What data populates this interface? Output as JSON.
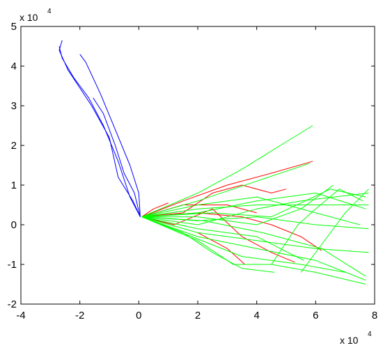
{
  "chart_data": {
    "type": "line",
    "title": "",
    "xlabel": "",
    "ylabel": "",
    "x_multiplier_label": {
      "base": "x 10",
      "exp": "4"
    },
    "y_multiplier_label": {
      "base": "x 10",
      "exp": "4"
    },
    "xlim": [
      -4,
      8
    ],
    "ylim": [
      -2,
      5
    ],
    "xticks": [
      -4,
      -2,
      0,
      2,
      4,
      6,
      8
    ],
    "yticks": [
      -2,
      -1,
      0,
      1,
      2,
      3,
      4,
      5
    ],
    "xtick_labels": [
      "-4",
      "-2",
      "0",
      "2",
      "4",
      "6",
      "8"
    ],
    "ytick_labels": [
      "-2",
      "-1",
      "0",
      "1",
      "2",
      "3",
      "4",
      "5"
    ],
    "grid": false,
    "colors": {
      "blue": "#0000ff",
      "red": "#ff0000",
      "green": "#00ff00"
    },
    "series": [
      {
        "color": "blue",
        "points": [
          [
            0.05,
            0.2
          ],
          [
            0,
            0.8
          ],
          [
            -0.3,
            1.5
          ],
          [
            -0.8,
            2.4
          ],
          [
            -1.3,
            3.3
          ],
          [
            -1.8,
            4.1
          ],
          [
            -2.0,
            4.3
          ]
        ]
      },
      {
        "color": "blue",
        "points": [
          [
            0.05,
            0.2
          ],
          [
            -0.15,
            0.8
          ],
          [
            -0.5,
            1.3
          ],
          [
            -0.8,
            2.0
          ],
          [
            -1.2,
            2.8
          ],
          [
            -1.55,
            3.2
          ]
        ]
      },
      {
        "color": "blue",
        "points": [
          [
            0.05,
            0.2
          ],
          [
            -0.2,
            0.6
          ],
          [
            -0.7,
            1.2
          ],
          [
            -1.0,
            2.2
          ],
          [
            -1.6,
            3.0
          ],
          [
            -2.4,
            3.9
          ],
          [
            -2.7,
            4.4
          ],
          [
            -2.6,
            4.65
          ]
        ]
      },
      {
        "color": "blue",
        "points": [
          [
            0.05,
            0.2
          ],
          [
            -0.3,
            0.7
          ],
          [
            -0.7,
            1.6
          ],
          [
            -1.2,
            2.5
          ],
          [
            -1.7,
            3.2
          ],
          [
            -2.2,
            3.7
          ],
          [
            -2.6,
            4.2
          ],
          [
            -2.7,
            4.5
          ]
        ]
      },
      {
        "color": "red",
        "points": [
          [
            0.1,
            0.2
          ],
          [
            0.5,
            0.4
          ],
          [
            1.0,
            0.55
          ]
        ]
      },
      {
        "color": "red",
        "points": [
          [
            0.1,
            0.2
          ],
          [
            1.5,
            0.3
          ],
          [
            2.5,
            0.8
          ],
          [
            3.5,
            1.0
          ],
          [
            4.5,
            0.8
          ],
          [
            5.0,
            0.9
          ]
        ]
      },
      {
        "color": "red",
        "points": [
          [
            0.1,
            0.2
          ],
          [
            1.5,
            0.5
          ],
          [
            3.0,
            0.5
          ],
          [
            4.0,
            0.3
          ]
        ]
      },
      {
        "color": "red",
        "points": [
          [
            0.1,
            0.2
          ],
          [
            2.0,
            0.3
          ],
          [
            3.5,
            0.2
          ],
          [
            4.5,
            0.0
          ],
          [
            5.5,
            -0.3
          ],
          [
            6.2,
            -0.65
          ]
        ]
      },
      {
        "color": "red",
        "points": [
          [
            0.1,
            0.2
          ],
          [
            1.5,
            0.6
          ],
          [
            3.0,
            1.0
          ],
          [
            4.5,
            1.3
          ],
          [
            5.9,
            1.6
          ]
        ]
      },
      {
        "color": "red",
        "points": [
          [
            0.1,
            0.2
          ],
          [
            1.2,
            0.0
          ],
          [
            2.5,
            0.4
          ],
          [
            3.5,
            -0.3
          ],
          [
            4.5,
            -0.7
          ],
          [
            5.3,
            -0.95
          ]
        ]
      },
      {
        "color": "red",
        "points": [
          [
            2.0,
            -0.2
          ],
          [
            3.0,
            -0.6
          ],
          [
            3.6,
            -1.0
          ]
        ]
      },
      {
        "color": "green",
        "points": [
          [
            0.1,
            0.2
          ],
          [
            2.0,
            0.8
          ],
          [
            3.5,
            1.4
          ],
          [
            4.8,
            2.0
          ],
          [
            5.9,
            2.5
          ]
        ]
      },
      {
        "color": "green",
        "points": [
          [
            0.1,
            0.2
          ],
          [
            2.0,
            0.6
          ],
          [
            4.0,
            1.1
          ],
          [
            5.8,
            1.55
          ]
        ]
      },
      {
        "color": "green",
        "points": [
          [
            0.1,
            0.2
          ],
          [
            2.0,
            0.4
          ],
          [
            4.0,
            0.5
          ],
          [
            6.0,
            0.5
          ],
          [
            7.8,
            0.5
          ]
        ]
      },
      {
        "color": "green",
        "points": [
          [
            0.1,
            0.2
          ],
          [
            2.0,
            0.1
          ],
          [
            4.0,
            0.2
          ],
          [
            6.0,
            0.0
          ],
          [
            7.8,
            -0.1
          ]
        ]
      },
      {
        "color": "green",
        "points": [
          [
            0.1,
            0.2
          ],
          [
            2.0,
            -0.3
          ],
          [
            4.0,
            -0.6
          ],
          [
            6.0,
            -0.9
          ],
          [
            7.7,
            -1.4
          ]
        ]
      },
      {
        "color": "green",
        "points": [
          [
            0.1,
            0.2
          ],
          [
            2.0,
            -0.4
          ],
          [
            3.2,
            -1.0
          ],
          [
            4.5,
            -1.0
          ],
          [
            6.0,
            -1.2
          ],
          [
            7.7,
            -1.5
          ]
        ]
      },
      {
        "color": "green",
        "points": [
          [
            0.1,
            0.2
          ],
          [
            2.0,
            -0.2
          ],
          [
            4.0,
            -0.4
          ],
          [
            6.0,
            -0.6
          ],
          [
            7.8,
            -0.7
          ]
        ]
      },
      {
        "color": "green",
        "points": [
          [
            0.1,
            0.2
          ],
          [
            2.0,
            0.0
          ],
          [
            4.0,
            0.4
          ],
          [
            5.5,
            0.6
          ],
          [
            7.8,
            0.8
          ]
        ]
      },
      {
        "color": "green",
        "points": [
          [
            0.1,
            0.2
          ],
          [
            2.0,
            0.2
          ],
          [
            4.0,
            0.0
          ],
          [
            5.5,
            0.4
          ],
          [
            6.6,
            1.0
          ]
        ]
      },
      {
        "color": "green",
        "points": [
          [
            0.1,
            0.2
          ],
          [
            2.0,
            0.5
          ],
          [
            4.0,
            0.7
          ],
          [
            6.0,
            0.3
          ],
          [
            7.5,
            0.0
          ]
        ]
      },
      {
        "color": "green",
        "points": [
          [
            0.1,
            0.2
          ],
          [
            2.0,
            -0.1
          ],
          [
            4.0,
            -0.3
          ],
          [
            5.6,
            -0.9
          ]
        ]
      },
      {
        "color": "green",
        "points": [
          [
            0.1,
            0.2
          ],
          [
            1.5,
            -0.2
          ],
          [
            2.5,
            -0.7
          ],
          [
            3.5,
            -1.1
          ],
          [
            4.6,
            -1.2
          ]
        ]
      },
      {
        "color": "green",
        "points": [
          [
            0.1,
            0.2
          ],
          [
            2.5,
            0.3
          ],
          [
            4.5,
            0.2
          ],
          [
            6.5,
            0.9
          ],
          [
            7.7,
            0.7
          ]
        ]
      },
      {
        "color": "green",
        "points": [
          [
            0.1,
            0.2
          ],
          [
            2.2,
            0.1
          ],
          [
            4.2,
            -0.2
          ],
          [
            6.2,
            -0.6
          ],
          [
            7.7,
            -1.3
          ]
        ]
      },
      {
        "color": "green",
        "points": [
          [
            0.1,
            0.2
          ],
          [
            2.0,
            0.3
          ],
          [
            4.0,
            0.6
          ],
          [
            6.0,
            0.8
          ],
          [
            7.7,
            0.4
          ]
        ]
      },
      {
        "color": "green",
        "points": [
          [
            0.1,
            0.2
          ],
          [
            1.8,
            -0.3
          ],
          [
            3.5,
            -0.8
          ],
          [
            5.5,
            -1.0
          ],
          [
            7.0,
            -1.2
          ]
        ]
      },
      {
        "color": "green",
        "points": [
          [
            4.5,
            -1.0
          ],
          [
            5.4,
            0.0
          ],
          [
            6.0,
            0.4
          ],
          [
            6.8,
            0.9
          ],
          [
            7.6,
            0.6
          ]
        ]
      },
      {
        "color": "green",
        "points": [
          [
            5.5,
            -1.2
          ],
          [
            6.2,
            -0.5
          ],
          [
            7.0,
            0.3
          ],
          [
            7.8,
            0.9
          ]
        ]
      }
    ]
  }
}
